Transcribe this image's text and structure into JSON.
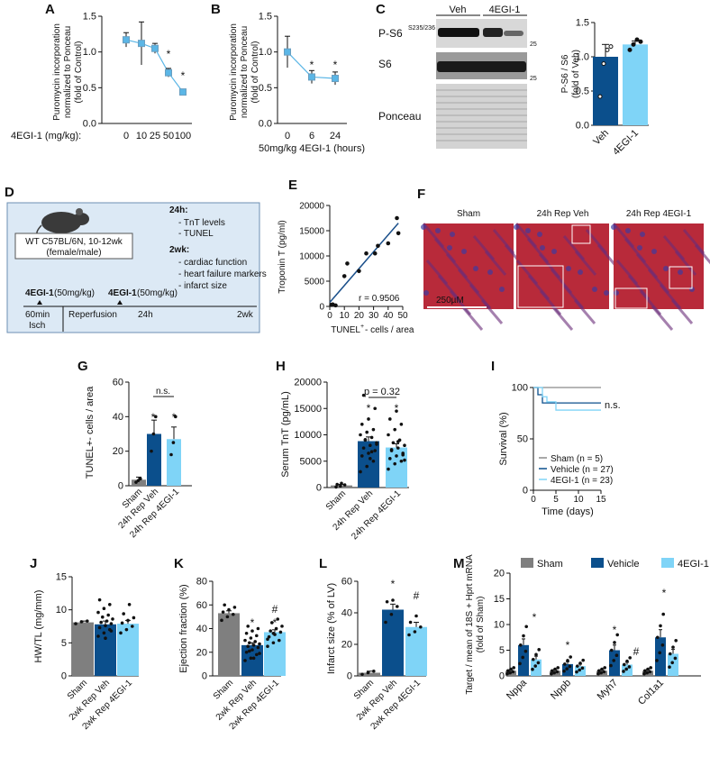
{
  "panels": {
    "A": {
      "label": "A",
      "ylabel": [
        "Puromycin incorporation",
        "normalized to Ponceau",
        "(fold of Control)"
      ],
      "xprefix": "4EGI-1 (mg/kg):",
      "xticks": [
        "0",
        "10",
        "25",
        "50",
        "100"
      ],
      "yticks": [
        "0.0",
        "0.5",
        "1.0",
        "1.5"
      ],
      "stars": [
        "*",
        "*"
      ]
    },
    "B": {
      "label": "B",
      "ylabel": [
        "Puromycin incorporation",
        "normalized to Ponceau",
        "(fold of Control)"
      ],
      "xticks": [
        "0",
        "6",
        "24"
      ],
      "xlabel": "50mg/kg 4EGI-1 (hours)",
      "yticks": [
        "0.0",
        "0.5",
        "1.0",
        "1.5"
      ],
      "stars": [
        "*",
        "*"
      ]
    },
    "C": {
      "label": "C",
      "lanes": [
        "Veh",
        "4EGI-1"
      ],
      "blots": [
        "P-S6",
        "S6",
        "Ponceau"
      ],
      "sup": "S235/236",
      "mw": [
        "25",
        "25"
      ],
      "ylabel": [
        "P-S6 / S6",
        "(fold of Veh)"
      ],
      "yticks": [
        "0.0",
        "0.5",
        "1.0",
        "1.5"
      ],
      "xticks": [
        "Veh",
        "4EGI-1"
      ]
    },
    "D": {
      "label": "D",
      "mouse": [
        "WT C57BL/6N, 10-12wk",
        "(female/male)"
      ],
      "h24_title": "24h:",
      "h24_items": [
        "TnT levels",
        "TUNEL"
      ],
      "wk2_title": "2wk:",
      "wk2_items": [
        "cardiac function",
        "heart failure markers",
        "infarct size"
      ],
      "dose1": "4EGI-1",
      "dose1b": "(50mg/kg)",
      "dose2": "4EGI-1",
      "dose2b": "(50mg/kg)",
      "timeline": [
        "60min",
        "Isch",
        "Reperfusion",
        "24h",
        "2wk"
      ]
    },
    "E": {
      "label": "E",
      "ylabel": "Troponin T (pg/ml)",
      "xlabel_pre": "TUNEL",
      "xlabel_sup": "+",
      "xlabel_post": "- cells / area",
      "yticks": [
        "0",
        "5000",
        "10000",
        "15000",
        "20000"
      ],
      "xticks": [
        "0",
        "10",
        "20",
        "30",
        "40",
        "50"
      ],
      "r": "r = 0.9506"
    },
    "F": {
      "label": "F",
      "cols": [
        "Sham",
        "24h Rep Veh",
        "24h Rep 4EGI-1"
      ],
      "scale": "250µM"
    },
    "G": {
      "label": "G",
      "ylabel_pre": "TUNEL",
      "ylabel_sup": "+",
      "ylabel_post": "- cells / area",
      "yticks": [
        "0",
        "20",
        "40",
        "60"
      ],
      "xticks": [
        "Sham",
        "24h Rep Veh",
        "24h Rep 4EGI-1"
      ],
      "ns": "n.s.",
      "stars": [
        "*",
        "*"
      ]
    },
    "H": {
      "label": "H",
      "ylabel": "Serum TnT (pg/mL)",
      "yticks": [
        "0",
        "5000",
        "10000",
        "15000",
        "20000"
      ],
      "xticks": [
        "Sham",
        "24h Rep Veh",
        "24h Rep 4EGI-1"
      ],
      "p": "p = 0.32",
      "stars": [
        "*",
        "*"
      ]
    },
    "I": {
      "label": "I",
      "ylabel": "Survival (%)",
      "xlabel": "Time (days)",
      "yticks": [
        "0",
        "50",
        "100"
      ],
      "xticks": [
        "0",
        "5",
        "10",
        "15"
      ],
      "legend": [
        "Sham (n = 5)",
        "Vehicle (n = 27)",
        "4EGI-1 (n = 23)"
      ],
      "ns": "n.s."
    },
    "J": {
      "label": "J",
      "ylabel": "HW/TL (mg/mm)",
      "yticks": [
        "0",
        "5",
        "10",
        "15"
      ],
      "xticks": [
        "Sham",
        "2wk Rep Veh",
        "2wk Rep 4EGI-1"
      ]
    },
    "K": {
      "label": "K",
      "ylabel": "Ejection fraction (%)",
      "yticks": [
        "0",
        "20",
        "40",
        "60",
        "80"
      ],
      "xticks": [
        "Sham",
        "2wk Rep Veh",
        "2wk Rep 4EGI-1"
      ],
      "marks": [
        "*",
        "#",
        "*"
      ]
    },
    "L": {
      "label": "L",
      "ylabel": "Infarct size (% of LV)",
      "yticks": [
        "0",
        "20",
        "40",
        "60"
      ],
      "xticks": [
        "Sham",
        "2wk Rep Veh",
        "2wk Rep 4EGI-1"
      ],
      "marks": [
        "*",
        "#"
      ]
    },
    "M": {
      "label": "M",
      "ylabel": [
        "Target / mean of 18S + Hprt mRNA",
        "(fold of Sham)"
      ],
      "yticks": [
        "0",
        "5",
        "10",
        "15",
        "20"
      ],
      "xticks": [
        "Nppa",
        "Nppb",
        "Myh7",
        "Col1a1"
      ],
      "legend": [
        "Sham",
        "Vehicle",
        "4EGI-1"
      ],
      "marks": [
        "*",
        "*",
        "*",
        "#",
        "*"
      ]
    }
  },
  "colors": {
    "sham": "#7f7f7f",
    "veh": "#0b4f8c",
    "egi": "#7fd4f7",
    "line": "#5bb6e6",
    "box": "#dce9f5",
    "boxborder": "#6c8fb3"
  },
  "chart_data": [
    {
      "type": "line",
      "panel": "A",
      "x": [
        "0",
        "10",
        "25",
        "50",
        "100"
      ],
      "values": [
        1.17,
        1.12,
        1.05,
        0.71,
        0.44
      ],
      "errors": [
        0.1,
        0.3,
        0.07,
        0.06,
        0.03
      ],
      "ylim": [
        0,
        1.5
      ]
    },
    {
      "type": "line",
      "panel": "B",
      "x": [
        "0",
        "6",
        "24"
      ],
      "values": [
        1.0,
        0.65,
        0.63
      ],
      "errors": [
        0.22,
        0.09,
        0.09
      ],
      "ylim": [
        0,
        1.5
      ]
    },
    {
      "type": "bar",
      "panel": "C",
      "categories": [
        "Veh",
        "4EGI-1"
      ],
      "values": [
        1.0,
        1.18
      ],
      "errors": [
        0.18,
        0.05
      ],
      "ylim": [
        0,
        1.5
      ]
    },
    {
      "type": "scatter",
      "panel": "E",
      "x": [
        1,
        2,
        4,
        10,
        12,
        20,
        25,
        31,
        33,
        40,
        46,
        47
      ],
      "y": [
        300,
        400,
        200,
        6000,
        8500,
        7000,
        10500,
        10500,
        12000,
        12500,
        17500,
        14500
      ],
      "xlim": [
        0,
        50
      ],
      "ylim": [
        0,
        20000
      ]
    },
    {
      "type": "bar",
      "panel": "G",
      "categories": [
        "Sham",
        "24h Rep Veh",
        "24h Rep 4EGI-1"
      ],
      "values": [
        3.5,
        30,
        27
      ],
      "errors": [
        1.5,
        8,
        7
      ],
      "ylim": [
        0,
        60
      ]
    },
    {
      "type": "bar",
      "panel": "H",
      "categories": [
        "Sham",
        "24h Rep Veh",
        "24h Rep 4EGI-1"
      ],
      "values": [
        400,
        8800,
        7600
      ],
      "errors": [
        200,
        800,
        700
      ],
      "ylim": [
        0,
        20000
      ]
    },
    {
      "type": "line",
      "panel": "I",
      "series": [
        {
          "name": "Sham (n = 5)",
          "x": [
            0,
            15
          ],
          "y": [
            100,
            100
          ]
        },
        {
          "name": "Vehicle (n = 27)",
          "x": [
            0,
            1,
            2,
            15
          ],
          "y": [
            100,
            93,
            85,
            85
          ]
        },
        {
          "name": "4EGI-1 (n = 23)",
          "x": [
            0,
            2,
            3,
            5,
            15
          ],
          "y": [
            100,
            91,
            86,
            78,
            78
          ]
        }
      ],
      "xlim": [
        0,
        15
      ],
      "ylim": [
        0,
        100
      ]
    },
    {
      "type": "bar",
      "panel": "J",
      "categories": [
        "Sham",
        "2wk Rep Veh",
        "2wk Rep 4EGI-1"
      ],
      "values": [
        8.1,
        7.8,
        7.9
      ],
      "errors": [
        0.2,
        0.5,
        0.5
      ],
      "ylim": [
        0,
        15
      ]
    },
    {
      "type": "bar",
      "panel": "K",
      "categories": [
        "Sham",
        "2wk Rep Veh",
        "2wk Rep 4EGI-1"
      ],
      "values": [
        53,
        26,
        37
      ],
      "errors": [
        2,
        2,
        2
      ],
      "ylim": [
        0,
        80
      ]
    },
    {
      "type": "bar",
      "panel": "L",
      "categories": [
        "Sham",
        "2wk Rep Veh",
        "2wk Rep 4EGI-1"
      ],
      "values": [
        2,
        42,
        31
      ],
      "errors": [
        1,
        3.5,
        3
      ],
      "ylim": [
        0,
        60
      ]
    },
    {
      "type": "bar",
      "panel": "M",
      "categories": [
        "Nppa",
        "Nppb",
        "Myh7",
        "Col1a1"
      ],
      "series": [
        {
          "name": "Sham",
          "values": [
            1,
            1,
            1,
            1
          ]
        },
        {
          "name": "Vehicle",
          "values": [
            6,
            2.3,
            5,
            7.5
          ]
        },
        {
          "name": "4EGI-1",
          "values": [
            3.2,
            1.9,
            2.2,
            4.3
          ]
        }
      ],
      "ylim": [
        0,
        20
      ]
    }
  ]
}
